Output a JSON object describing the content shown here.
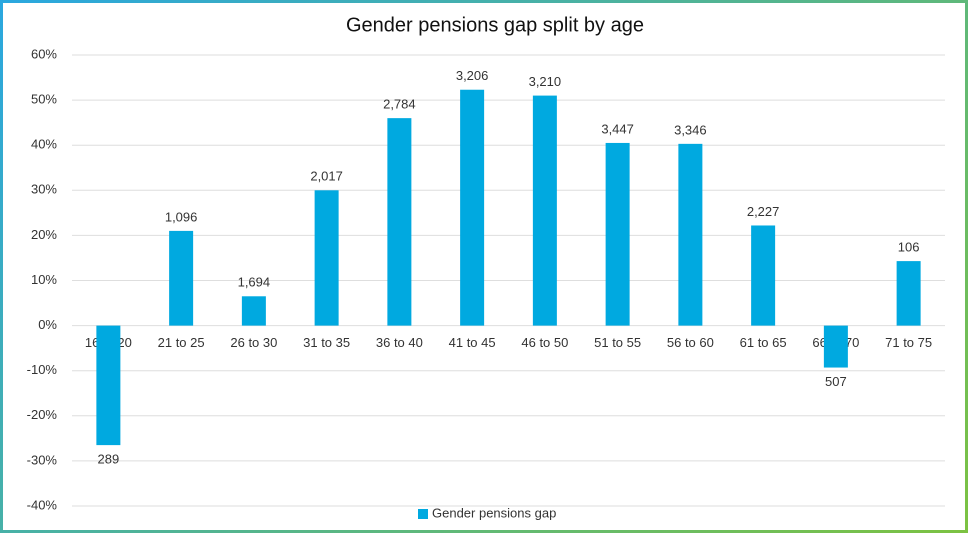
{
  "chart_data": {
    "type": "bar",
    "title": "Gender pensions gap split by age",
    "categories": [
      "16 to 20",
      "21 to 25",
      "26 to 30",
      "31 to 35",
      "36 to 40",
      "41 to 45",
      "46 to 50",
      "51 to 55",
      "56 to 60",
      "61 to 65",
      "66 to 70",
      "71 to 75"
    ],
    "series": [
      {
        "name": "Gender pensions gap",
        "color": "#00a9e0",
        "values": [
          -26.5,
          21,
          6.5,
          30,
          46,
          52.3,
          51,
          40.5,
          40.3,
          22.2,
          -9.3,
          14.3
        ],
        "data_labels": [
          "289",
          "1,096",
          "1,694",
          "2,017",
          "2,784",
          "3,206",
          "3,210",
          "3,447",
          "3,346",
          "2,227",
          "507",
          "106"
        ]
      }
    ],
    "ylim": [
      -40,
      60
    ],
    "yticks": [
      {
        "value": -40,
        "label": "-40%"
      },
      {
        "value": -30,
        "label": "-30%"
      },
      {
        "value": -20,
        "label": "-20%"
      },
      {
        "value": -10,
        "label": "-10%"
      },
      {
        "value": 0,
        "label": "0%"
      },
      {
        "value": 10,
        "label": "10%"
      },
      {
        "value": 20,
        "label": "20%"
      },
      {
        "value": 30,
        "label": "30%"
      },
      {
        "value": 40,
        "label": "40%"
      },
      {
        "value": 50,
        "label": "50%"
      },
      {
        "value": 60,
        "label": "60%"
      }
    ],
    "grid": true,
    "legend": "bottom"
  }
}
